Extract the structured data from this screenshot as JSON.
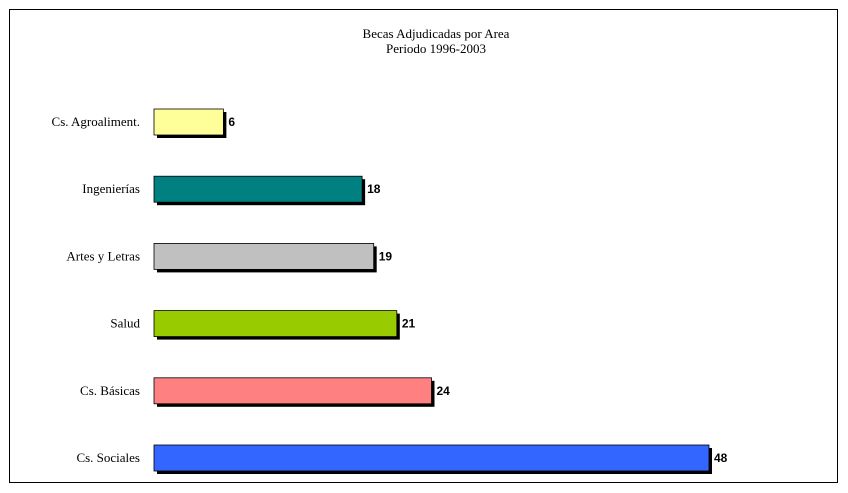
{
  "chart_data": {
    "type": "bar",
    "orientation": "horizontal",
    "title": "Becas Adjudicadas por Area",
    "subtitle": "Periodo 1996-2003",
    "categories": [
      "Cs. Agroaliment.",
      "Ingenierías",
      "Artes y Letras",
      "Salud",
      "Cs. Básicas",
      "Cs. Sociales"
    ],
    "values": [
      6,
      18,
      19,
      21,
      24,
      48
    ],
    "value_labels": [
      "6",
      "18",
      "19",
      "21",
      "24",
      "48"
    ],
    "colors": [
      "#ffff99",
      "#008080",
      "#c0c0c0",
      "#99cc00",
      "#ff8080",
      "#3366ff"
    ],
    "xlim": [
      0,
      48
    ],
    "grid": false,
    "legend": "none",
    "bar_shadow": true
  }
}
